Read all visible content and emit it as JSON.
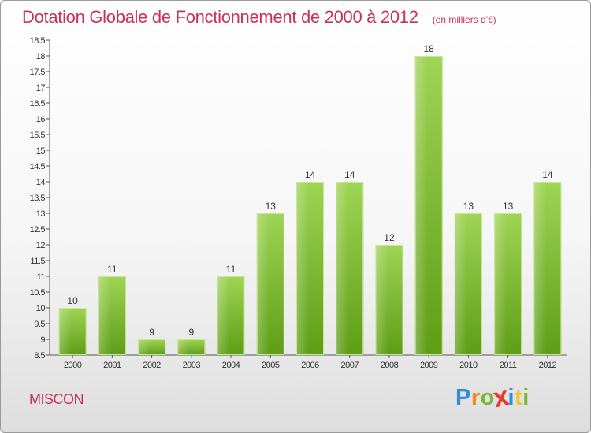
{
  "header": {
    "title": "Dotation Globale de Fonctionnement de 2000 à 2012",
    "unit": "(en milliers d'€)"
  },
  "footer": {
    "commune": "MISCON",
    "logo_letters": [
      "P",
      "r",
      "o",
      "x",
      "i",
      "t",
      "i"
    ],
    "logo_colors": [
      "#2e8fd6",
      "#f08a1c",
      "#79b832",
      "#e83a2e",
      "#2e8fd6",
      "#f2c230",
      "#79b832"
    ]
  },
  "chart_data": {
    "type": "bar",
    "title": "Dotation Globale de Fonctionnement de 2000 à 2012",
    "subtitle": "(en milliers d'€)",
    "categories": [
      "2000",
      "2001",
      "2002",
      "2003",
      "2004",
      "2005",
      "2006",
      "2007",
      "2008",
      "2009",
      "2010",
      "2011",
      "2012"
    ],
    "values": [
      10,
      11,
      9,
      9,
      11,
      13,
      14,
      14,
      12,
      18,
      13,
      13,
      14
    ],
    "ylim": [
      8.5,
      18.5
    ],
    "yticks": [
      "8.5",
      "9",
      "9.5",
      "10",
      "10.5",
      "11",
      "11.5",
      "12",
      "12.5",
      "13",
      "13.5",
      "14",
      "14.5",
      "15",
      "15.5",
      "16",
      "16.5",
      "17",
      "17.5",
      "18",
      "18.5"
    ],
    "grid": false,
    "bar_color": "#7bbd35",
    "legend": "none"
  }
}
